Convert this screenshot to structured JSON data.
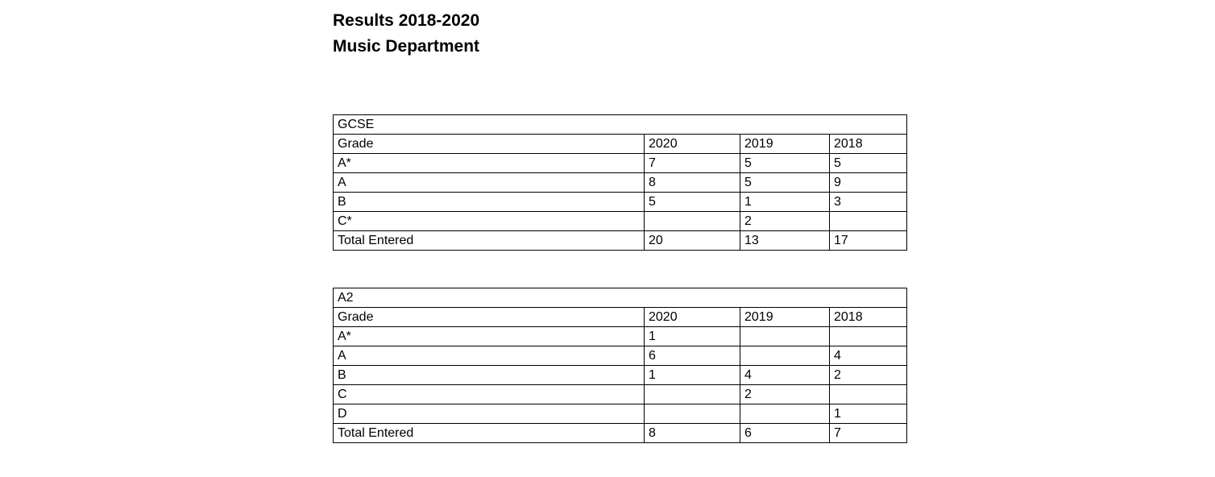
{
  "page": {
    "title_line1": "Results 2018-2020",
    "title_line2": "Music Department"
  },
  "tables": [
    {
      "name": "GCSE",
      "columns": [
        "Grade",
        "2020",
        "2019",
        "2018"
      ],
      "rows": [
        {
          "grade": "A*",
          "values": [
            "7",
            "5",
            "5"
          ]
        },
        {
          "grade": "A",
          "values": [
            "8",
            "5",
            "9"
          ]
        },
        {
          "grade": "B",
          "values": [
            "5",
            "1",
            "3"
          ]
        },
        {
          "grade": "C*",
          "values": [
            "",
            "2",
            ""
          ]
        },
        {
          "grade": "Total Entered",
          "values": [
            "20",
            "13",
            "17"
          ]
        }
      ]
    },
    {
      "name": "A2",
      "columns": [
        "Grade",
        "2020",
        "2019",
        "2018"
      ],
      "rows": [
        {
          "grade": "A*",
          "values": [
            "1",
            "",
            ""
          ]
        },
        {
          "grade": "A",
          "values": [
            "6",
            "",
            "4"
          ]
        },
        {
          "grade": "B",
          "values": [
            "1",
            "4",
            "2"
          ]
        },
        {
          "grade": "C",
          "values": [
            "",
            "2",
            ""
          ]
        },
        {
          "grade": "D",
          "values": [
            "",
            "",
            "1"
          ]
        },
        {
          "grade": "Total Entered",
          "values": [
            "8",
            "6",
            "7"
          ]
        }
      ]
    }
  ]
}
